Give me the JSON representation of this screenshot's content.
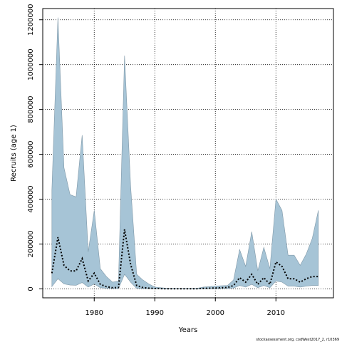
{
  "chart_data": {
    "type": "area",
    "xlabel": "Years",
    "ylabel": "Recruits (age 1)",
    "xlim": [
      1971.5,
      2019.5
    ],
    "ylim": [
      -40000,
      1250000
    ],
    "x_ticks": [
      1980,
      1990,
      2000,
      2010
    ],
    "y_ticks": [
      0,
      200000,
      400000,
      600000,
      800000,
      1000000,
      1200000
    ],
    "grid": true,
    "band_color": "#a6c4d6",
    "band_edge_color": "#7f98a8",
    "median_color": "#000000",
    "x": [
      1973,
      1974,
      1975,
      1976,
      1977,
      1978,
      1979,
      1980,
      1981,
      1982,
      1983,
      1984,
      1985,
      1986,
      1987,
      1988,
      1989,
      1990,
      1991,
      1992,
      1993,
      1994,
      1995,
      1996,
      1997,
      1998,
      1999,
      2000,
      2001,
      2002,
      2003,
      2004,
      2005,
      2006,
      2007,
      2008,
      2009,
      2010,
      2011,
      2012,
      2013,
      2014,
      2015,
      2016,
      2017
    ],
    "series": [
      {
        "role": "upper",
        "values": [
          440000,
          1210000,
          540000,
          420000,
          410000,
          685000,
          165000,
          350000,
          90000,
          55000,
          30000,
          35000,
          1040000,
          460000,
          65000,
          40000,
          22000,
          8000,
          5000,
          3000,
          2000,
          1500,
          1500,
          2000,
          3000,
          8000,
          10000,
          12000,
          14000,
          15000,
          40000,
          175000,
          100000,
          255000,
          80000,
          185000,
          90000,
          400000,
          350000,
          150000,
          150000,
          105000,
          155000,
          225000,
          350000
        ]
      },
      {
        "role": "lower",
        "values": [
          10000,
          45000,
          22000,
          17000,
          16000,
          28000,
          8000,
          22000,
          5000,
          2500,
          1200,
          1000,
          65000,
          30000,
          2000,
          1000,
          500,
          200,
          150,
          100,
          100,
          100,
          100,
          100,
          150,
          500,
          800,
          1000,
          1200,
          1500,
          4000,
          15000,
          8000,
          20000,
          5000,
          15000,
          5000,
          35000,
          30000,
          12000,
          12000,
          8000,
          12000,
          15000,
          15000
        ]
      },
      {
        "role": "median",
        "values": [
          70000,
          230000,
          105000,
          80000,
          80000,
          135000,
          35000,
          70000,
          20000,
          10000,
          5000,
          6000,
          265000,
          110000,
          15000,
          6000,
          3000,
          1500,
          1000,
          500,
          400,
          300,
          300,
          400,
          700,
          2000,
          3000,
          4000,
          5000,
          6000,
          15000,
          50000,
          30000,
          65000,
          20000,
          50000,
          20000,
          120000,
          100000,
          45000,
          45000,
          30000,
          45000,
          55000,
          55000
        ]
      }
    ]
  },
  "footer": {
    "note": "stockassessment.org, codWest2017_2, r10369"
  }
}
